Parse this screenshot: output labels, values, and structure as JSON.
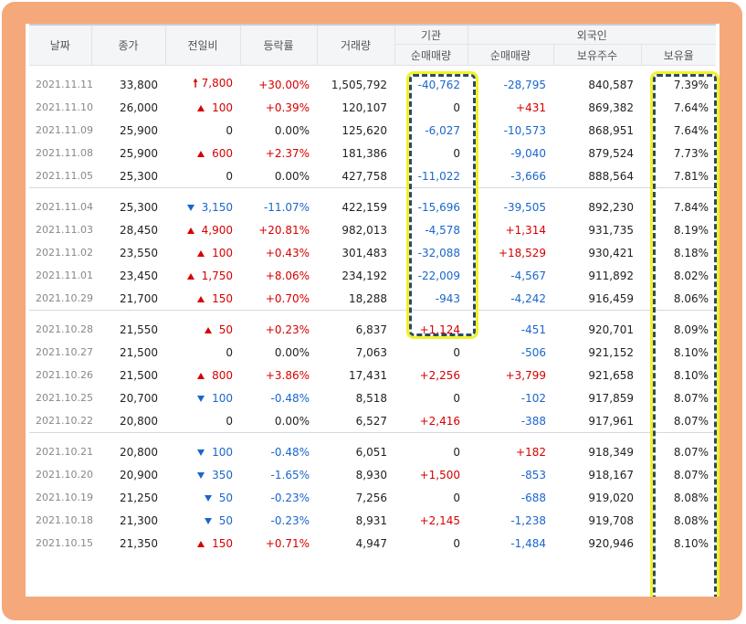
{
  "header": {
    "date": "날짜",
    "close": "종가",
    "change": "전일비",
    "rate": "등락률",
    "volume": "거래량",
    "institution": "기관",
    "foreign": "외국인",
    "inst_net": "순매매량",
    "frgn_net": "순매매량",
    "frgn_holdings": "보유주수",
    "frgn_ratio": "보유율"
  },
  "colors": {
    "up": "#d60000",
    "down": "#1a66cc",
    "frame": "#f5a97a",
    "highlight": "#f2f22a"
  },
  "groups": [
    {
      "rows": [
        {
          "date": "2021.11.11",
          "close": "33,800",
          "dir": "limitup",
          "change": "7,800",
          "rate": "+30.00%",
          "volume": "1,505,792",
          "inst": "-40,762",
          "frgn": "-28,795",
          "hold": "840,587",
          "ratio": "7.39%"
        },
        {
          "date": "2021.11.10",
          "close": "26,000",
          "dir": "up",
          "change": "100",
          "rate": "+0.39%",
          "volume": "120,107",
          "inst": "0",
          "frgn": "+431",
          "hold": "869,382",
          "ratio": "7.64%"
        },
        {
          "date": "2021.11.09",
          "close": "25,900",
          "dir": "none",
          "change": "0",
          "rate": "0.00%",
          "volume": "125,620",
          "inst": "-6,027",
          "frgn": "-10,573",
          "hold": "868,951",
          "ratio": "7.64%"
        },
        {
          "date": "2021.11.08",
          "close": "25,900",
          "dir": "up",
          "change": "600",
          "rate": "+2.37%",
          "volume": "181,386",
          "inst": "0",
          "frgn": "-9,040",
          "hold": "879,524",
          "ratio": "7.73%"
        },
        {
          "date": "2021.11.05",
          "close": "25,300",
          "dir": "none",
          "change": "0",
          "rate": "0.00%",
          "volume": "427,758",
          "inst": "-11,022",
          "frgn": "-3,666",
          "hold": "888,564",
          "ratio": "7.81%"
        }
      ]
    },
    {
      "rows": [
        {
          "date": "2021.11.04",
          "close": "25,300",
          "dir": "down",
          "change": "3,150",
          "rate": "-11.07%",
          "volume": "422,159",
          "inst": "-15,696",
          "frgn": "-39,505",
          "hold": "892,230",
          "ratio": "7.84%"
        },
        {
          "date": "2021.11.03",
          "close": "28,450",
          "dir": "up",
          "change": "4,900",
          "rate": "+20.81%",
          "volume": "982,013",
          "inst": "-4,578",
          "frgn": "+1,314",
          "hold": "931,735",
          "ratio": "8.19%"
        },
        {
          "date": "2021.11.02",
          "close": "23,550",
          "dir": "up",
          "change": "100",
          "rate": "+0.43%",
          "volume": "301,483",
          "inst": "-32,088",
          "frgn": "+18,529",
          "hold": "930,421",
          "ratio": "8.18%"
        },
        {
          "date": "2021.11.01",
          "close": "23,450",
          "dir": "up",
          "change": "1,750",
          "rate": "+8.06%",
          "volume": "234,192",
          "inst": "-22,009",
          "frgn": "-4,567",
          "hold": "911,892",
          "ratio": "8.02%"
        },
        {
          "date": "2021.10.29",
          "close": "21,700",
          "dir": "up",
          "change": "150",
          "rate": "+0.70%",
          "volume": "18,288",
          "inst": "-943",
          "frgn": "-4,242",
          "hold": "916,459",
          "ratio": "8.06%"
        }
      ]
    },
    {
      "rows": [
        {
          "date": "2021.10.28",
          "close": "21,550",
          "dir": "up",
          "change": "50",
          "rate": "+0.23%",
          "volume": "6,837",
          "inst": "+1,124",
          "frgn": "-451",
          "hold": "920,701",
          "ratio": "8.09%"
        },
        {
          "date": "2021.10.27",
          "close": "21,500",
          "dir": "none",
          "change": "0",
          "rate": "0.00%",
          "volume": "7,063",
          "inst": "0",
          "frgn": "-506",
          "hold": "921,152",
          "ratio": "8.10%"
        },
        {
          "date": "2021.10.26",
          "close": "21,500",
          "dir": "up",
          "change": "800",
          "rate": "+3.86%",
          "volume": "17,431",
          "inst": "+2,256",
          "frgn": "+3,799",
          "hold": "921,658",
          "ratio": "8.10%"
        },
        {
          "date": "2021.10.25",
          "close": "20,700",
          "dir": "down",
          "change": "100",
          "rate": "-0.48%",
          "volume": "8,518",
          "inst": "0",
          "frgn": "-102",
          "hold": "917,859",
          "ratio": "8.07%"
        },
        {
          "date": "2021.10.22",
          "close": "20,800",
          "dir": "none",
          "change": "0",
          "rate": "0.00%",
          "volume": "6,527",
          "inst": "+2,416",
          "frgn": "-388",
          "hold": "917,961",
          "ratio": "8.07%"
        }
      ]
    },
    {
      "rows": [
        {
          "date": "2021.10.21",
          "close": "20,800",
          "dir": "down",
          "change": "100",
          "rate": "-0.48%",
          "volume": "6,051",
          "inst": "0",
          "frgn": "+182",
          "hold": "918,349",
          "ratio": "8.07%"
        },
        {
          "date": "2021.10.20",
          "close": "20,900",
          "dir": "down",
          "change": "350",
          "rate": "-1.65%",
          "volume": "8,930",
          "inst": "+1,500",
          "frgn": "-853",
          "hold": "918,167",
          "ratio": "8.07%"
        },
        {
          "date": "2021.10.19",
          "close": "21,250",
          "dir": "down",
          "change": "50",
          "rate": "-0.23%",
          "volume": "7,256",
          "inst": "0",
          "frgn": "-688",
          "hold": "919,020",
          "ratio": "8.08%"
        },
        {
          "date": "2021.10.18",
          "close": "21,300",
          "dir": "down",
          "change": "50",
          "rate": "-0.23%",
          "volume": "8,931",
          "inst": "+2,145",
          "frgn": "-1,238",
          "hold": "919,708",
          "ratio": "8.08%"
        },
        {
          "date": "2021.10.15",
          "close": "21,350",
          "dir": "up",
          "change": "150",
          "rate": "+0.71%",
          "volume": "4,947",
          "inst": "0",
          "frgn": "-1,484",
          "hold": "920,946",
          "ratio": "8.10%"
        }
      ]
    }
  ]
}
